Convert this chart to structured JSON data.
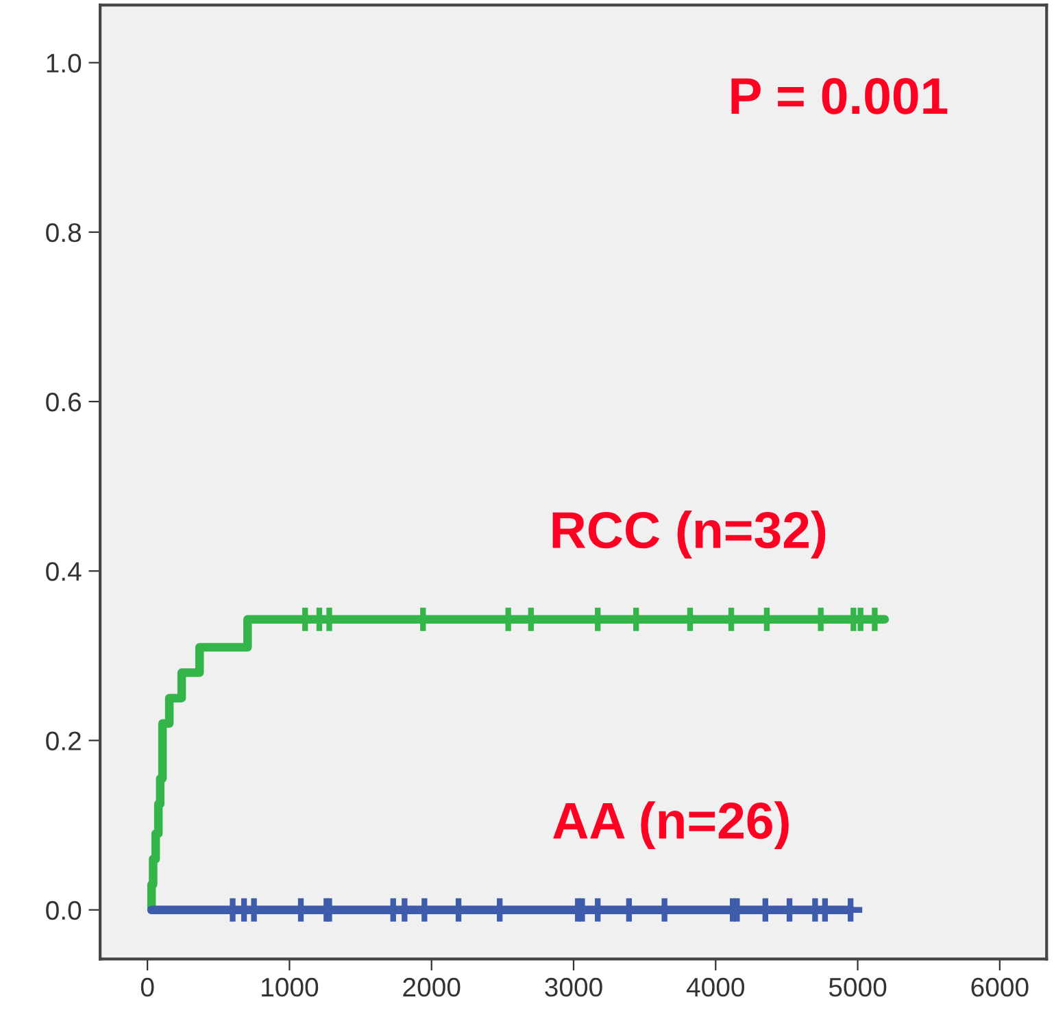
{
  "chart_data": {
    "type": "step",
    "annotations": [
      "P = 0.001"
    ],
    "xlim": [
      -333,
      6330
    ],
    "xticks": [
      0,
      1000,
      2000,
      3000,
      4000,
      5000,
      6000
    ],
    "ylim": [
      -0.058,
      1.068
    ],
    "yticks": [
      {
        "value": 0,
        "label": "0.0"
      },
      {
        "value": 0.2,
        "label": "0.2"
      },
      {
        "value": 0.4,
        "label": "0.4"
      },
      {
        "value": 0.6,
        "label": "0.6"
      },
      {
        "value": 0.8,
        "label": "0.8"
      },
      {
        "value": 1,
        "label": "1.0"
      }
    ],
    "grid": false,
    "line_style": "solid",
    "marker": "none",
    "series": [
      {
        "name": "RCC (n=32)",
        "color": "#33b54a",
        "x": [
          29,
          29,
          40,
          58,
          77,
          90,
          106,
          154,
          241,
          367,
          705,
          5190
        ],
        "values": [
          0,
          0.03,
          0.06,
          0.09,
          0.125,
          0.155,
          0.22,
          0.25,
          0.28,
          0.31,
          0.343,
          0.343
        ]
      },
      {
        "name": "AA (n=26)",
        "color": "#3f5bab",
        "x": [
          29,
          4950
        ],
        "values": [
          0,
          0
        ]
      },
      {
        "type": "scatter",
        "marker": "cross",
        "color": "#33b54a",
        "x": [
          1110,
          1210,
          1280,
          1940,
          2540,
          2700,
          3170,
          3440,
          3820,
          4110,
          4360,
          4740,
          4970,
          5020,
          5120
        ],
        "values": [
          0.343,
          0.343,
          0.343,
          0.343,
          0.343,
          0.343,
          0.343,
          0.343,
          0.343,
          0.343,
          0.343,
          0.343,
          0.343,
          0.343,
          0.343
        ]
      },
      {
        "type": "scatter",
        "marker": "cross",
        "color": "#3f5bab",
        "x": [
          600,
          680,
          750,
          1080,
          1260,
          1280,
          1730,
          1810,
          1950,
          2190,
          2480,
          3030,
          3060,
          3170,
          3390,
          3640,
          4120,
          4150,
          4350,
          4520,
          4700,
          4770,
          4950
        ],
        "values": [
          0,
          0,
          0,
          0,
          0,
          0,
          0,
          0,
          0,
          0,
          0,
          0,
          0,
          0,
          0,
          0,
          0,
          0,
          0,
          0,
          0,
          0,
          0
        ]
      }
    ]
  }
}
